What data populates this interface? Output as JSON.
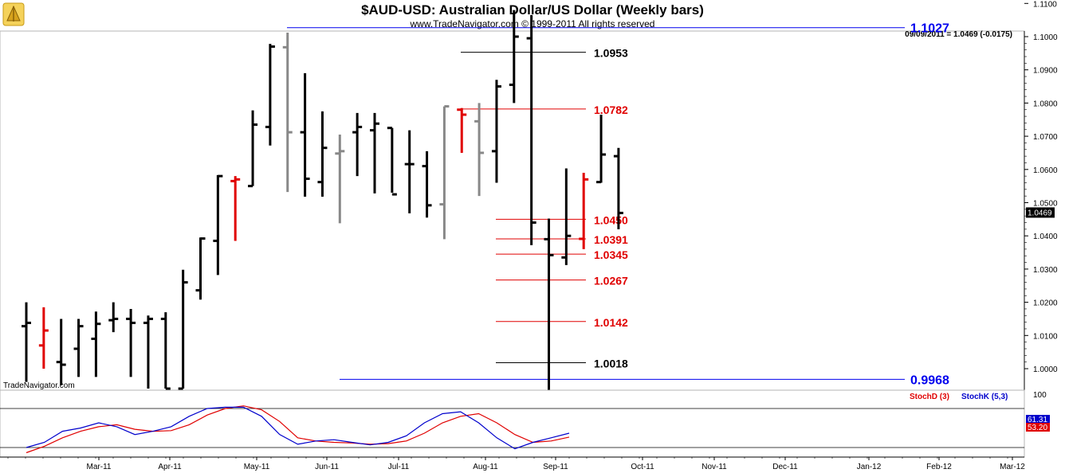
{
  "chart_data": {
    "type": "ohlc",
    "title": "$AUD-USD:  Australian Dollar/US Dollar  (Weekly bars)",
    "subtitle": "www.TradeNavigator.com © 1999-2011 All rights reserved",
    "watermark": "TradeNavigator.com",
    "last_quote": "09/09/2011 = 1.0469 (-0.0175)",
    "last_price_label": "1.0469",
    "y_range": [
      0.993,
      1.1125
    ],
    "y_ticks": [
      "1.1100",
      "1.1000",
      "1.0900",
      "1.0800",
      "1.0700",
      "1.0600",
      "1.0500",
      "1.0400",
      "1.0300",
      "1.0200",
      "1.0100",
      "1.0000"
    ],
    "x_months": [
      "Mar-11",
      "Apr-11",
      "May-11",
      "Jun-11",
      "Jul-11",
      "Aug-11",
      "Sep-11",
      "Oct-11",
      "Nov-11",
      "Dec-11",
      "Jan-12",
      "Feb-12",
      "Mar-12"
    ],
    "bars": [
      {
        "o": 1.0128,
        "h": 1.02,
        "l": 0.996,
        "c": 1.0138,
        "color": "#000000"
      },
      {
        "o": 1.007,
        "h": 1.0185,
        "l": 1.0,
        "c": 1.0115,
        "color": "#e00000"
      },
      {
        "o": 1.002,
        "h": 1.015,
        "l": 0.995,
        "c": 1.0012,
        "color": "#000000"
      },
      {
        "o": 1.006,
        "h": 1.015,
        "l": 0.9975,
        "c": 1.0128,
        "color": "#000000"
      },
      {
        "o": 1.009,
        "h": 1.0172,
        "l": 0.9975,
        "c": 1.0135,
        "color": "#000000"
      },
      {
        "o": 1.0146,
        "h": 1.02,
        "l": 1.011,
        "c": 1.015,
        "color": "#000000"
      },
      {
        "o": 1.015,
        "h": 1.018,
        "l": 0.9975,
        "c": 1.0138,
        "color": "#000000"
      },
      {
        "o": 1.0138,
        "h": 1.016,
        "l": 0.994,
        "c": 1.015,
        "color": "#000000"
      },
      {
        "o": 1.015,
        "h": 1.017,
        "l": 0.994,
        "c": 0.994,
        "color": "#000000"
      },
      {
        "o": 0.994,
        "h": 1.0298,
        "l": 0.994,
        "c": 1.026,
        "color": "#000000"
      },
      {
        "o": 1.0236,
        "h": 1.0395,
        "l": 1.0208,
        "c": 1.0392,
        "color": "#000000"
      },
      {
        "o": 1.0385,
        "h": 1.0583,
        "l": 1.0282,
        "c": 1.058,
        "color": "#000000"
      },
      {
        "o": 1.0565,
        "h": 1.058,
        "l": 1.0385,
        "c": 1.057,
        "color": "#e00000"
      },
      {
        "o": 1.055,
        "h": 1.0778,
        "l": 1.055,
        "c": 1.0735,
        "color": "#000000"
      },
      {
        "o": 1.0728,
        "h": 1.0978,
        "l": 1.0672,
        "c": 1.097,
        "color": "#000000"
      },
      {
        "o": 1.0968,
        "h": 1.1012,
        "l": 1.0532,
        "c": 1.0712,
        "color": "#888888"
      },
      {
        "o": 1.0712,
        "h": 1.089,
        "l": 1.0518,
        "c": 1.0572,
        "color": "#000000"
      },
      {
        "o": 1.0562,
        "h": 1.0775,
        "l": 1.0518,
        "c": 1.0665,
        "color": "#000000"
      },
      {
        "o": 1.0648,
        "h": 1.0705,
        "l": 1.0438,
        "c": 1.0655,
        "color": "#888888"
      },
      {
        "o": 1.0712,
        "h": 1.077,
        "l": 1.058,
        "c": 1.0728,
        "color": "#000000"
      },
      {
        "o": 1.0718,
        "h": 1.077,
        "l": 1.0528,
        "c": 1.0738,
        "color": "#000000"
      },
      {
        "o": 1.0725,
        "h": 1.0725,
        "l": 1.053,
        "c": 1.0525,
        "color": "#000000"
      },
      {
        "o": 1.0616,
        "h": 1.0718,
        "l": 1.0468,
        "c": 1.0616,
        "color": "#000000"
      },
      {
        "o": 1.061,
        "h": 1.0655,
        "l": 1.0455,
        "c": 1.0492,
        "color": "#000000"
      },
      {
        "o": 1.0495,
        "h": 1.079,
        "l": 1.039,
        "c": 1.079,
        "color": "#888888"
      },
      {
        "o": 1.078,
        "h": 1.0785,
        "l": 1.065,
        "c": 1.0765,
        "color": "#e00000"
      },
      {
        "o": 1.0745,
        "h": 1.08,
        "l": 1.052,
        "c": 1.065,
        "color": "#888888"
      },
      {
        "o": 1.0655,
        "h": 1.087,
        "l": 1.056,
        "c": 1.085,
        "color": "#000000"
      },
      {
        "o": 1.0855,
        "h": 1.108,
        "l": 1.08,
        "c": 1.1,
        "color": "#000000"
      },
      {
        "o": 1.0995,
        "h": 1.1065,
        "l": 1.0372,
        "c": 1.044,
        "color": "#000000"
      },
      {
        "o": 1.039,
        "h": 1.0452,
        "l": 0.9935,
        "c": 1.0342,
        "color": "#000000"
      },
      {
        "o": 1.0335,
        "h": 1.0603,
        "l": 1.0312,
        "c": 1.04,
        "color": "#000000"
      },
      {
        "o": 1.0391,
        "h": 1.059,
        "l": 1.036,
        "c": 1.057,
        "color": "#e00000"
      },
      {
        "o": 1.0562,
        "h": 1.0765,
        "l": 1.056,
        "c": 1.0645,
        "color": "#000000"
      },
      {
        "o": 1.064,
        "h": 1.0665,
        "l": 1.042,
        "c": 1.0469,
        "color": "#000000"
      }
    ],
    "levels": [
      {
        "value": 1.1027,
        "label": "1.1027",
        "color": "#0000ee",
        "big": true
      },
      {
        "value": 1.0953,
        "label": "1.0953",
        "color": "#000000",
        "big": false
      },
      {
        "value": 1.0782,
        "label": "1.0782",
        "color": "#e00000",
        "big": false
      },
      {
        "value": 1.045,
        "label": "1.0450",
        "color": "#e00000",
        "big": false
      },
      {
        "value": 1.0391,
        "label": "1.0391",
        "color": "#e00000",
        "big": false
      },
      {
        "value": 1.0345,
        "label": "1.0345",
        "color": "#e00000",
        "big": false
      },
      {
        "value": 1.0267,
        "label": "1.0267",
        "color": "#e00000",
        "big": false
      },
      {
        "value": 1.0142,
        "label": "1.0142",
        "color": "#e00000",
        "big": false
      },
      {
        "value": 1.0018,
        "label": "1.0018",
        "color": "#000000",
        "big": false
      },
      {
        "value": 0.9968,
        "label": "0.9968",
        "color": "#0000ee",
        "big": true
      }
    ],
    "stochastic": {
      "axis_label": "100",
      "stochD_label": "StochD (3)",
      "stochK_label": "StochK (5,3)",
      "stochD_value": "53.20",
      "stochK_value": "61.31",
      "stochD_color": "#e00000",
      "stochK_color": "#0000cc",
      "overbought": 80,
      "oversold": 20,
      "stochK": [
        20,
        28,
        45,
        50,
        58,
        52,
        40,
        45,
        52,
        68,
        80,
        82,
        82,
        68,
        40,
        25,
        30,
        32,
        28,
        24,
        28,
        38,
        58,
        72,
        75,
        58,
        35,
        18,
        28,
        35,
        42
      ],
      "stochD": [
        12,
        22,
        35,
        45,
        52,
        55,
        48,
        45,
        46,
        55,
        70,
        80,
        84,
        78,
        60,
        35,
        30,
        28,
        27,
        25,
        26,
        30,
        42,
        58,
        68,
        72,
        58,
        40,
        28,
        30,
        36
      ]
    }
  }
}
